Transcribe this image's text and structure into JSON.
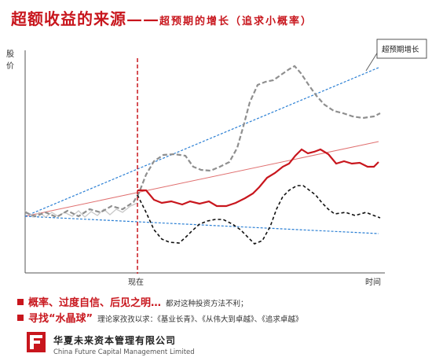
{
  "title": {
    "main": "超额收益的来源",
    "dash": "——",
    "sub": "超预期的增长（追求小概率）"
  },
  "axes": {
    "y_label_chars": [
      "股",
      "价"
    ],
    "x_label": "时间",
    "now_label": "现在"
  },
  "callout": {
    "text": "超预期增长"
  },
  "bullets": [
    {
      "main": "概率、过度自信、后见之明…",
      "note": "都对这种投资方法不利；"
    },
    {
      "main": "寻找“水晶球”",
      "note": "理论家孜孜以求：《基业长青》、《从伟大到卓越》、《追求卓越》"
    }
  ],
  "company": {
    "name_cn": "华夏未来资本管理有限公司",
    "name_en": "China Future Capital Management Limited"
  },
  "colors": {
    "accent": "#c8161d",
    "trend_blue": "#2a7fd4",
    "gray_line": "#8f8f8f",
    "black_dash": "#111111",
    "base_line": "#c8c8c8"
  }
}
